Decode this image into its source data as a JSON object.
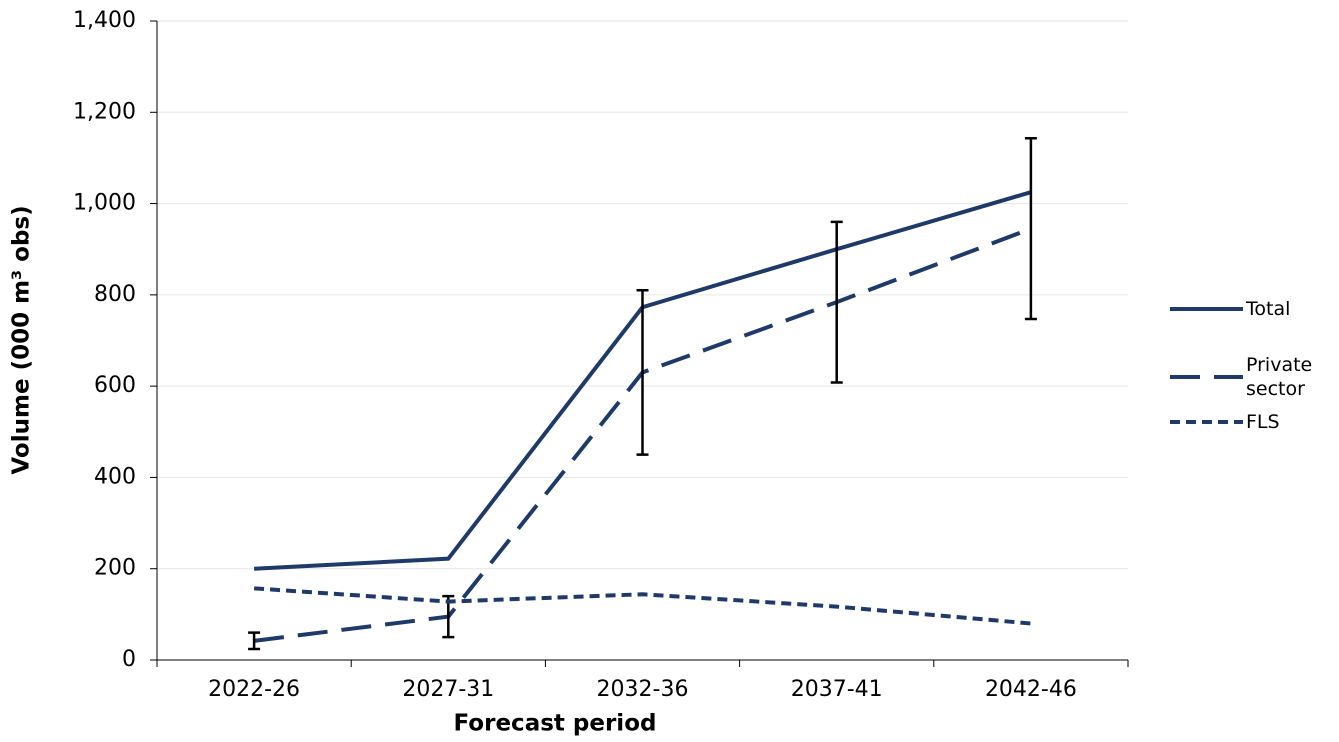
{
  "chart_data": {
    "type": "line",
    "x_label": "Forecast period",
    "y_label": "Volume (000 m³ obs)",
    "categories": [
      "2022-26",
      "2027-31",
      "2032-36",
      "2037-41",
      "2042-46"
    ],
    "series": [
      {
        "name": "Total",
        "color": "#1f3a68",
        "line_style": "solid",
        "values": [
          200,
          222,
          773,
          900,
          1025
        ]
      },
      {
        "name": "Private sector",
        "color": "#1f3a68",
        "line_style": "dashed",
        "values": [
          42,
          95,
          630,
          784,
          945
        ],
        "errors": [
          18,
          45,
          180,
          176,
          198
        ]
      },
      {
        "name": "FLS",
        "color": "#1f3a68",
        "line_style": "dotted",
        "values": [
          157,
          128,
          144,
          117,
          80
        ]
      }
    ],
    "ylim": [
      0,
      1400
    ],
    "yticks": [
      0,
      200,
      400,
      600,
      800,
      {
        "value": 1000,
        "label": "1,000"
      },
      {
        "value": 1200,
        "label": "1,200"
      },
      {
        "value": 1400,
        "label": "1,400"
      }
    ],
    "grid": true,
    "legend": "right"
  }
}
